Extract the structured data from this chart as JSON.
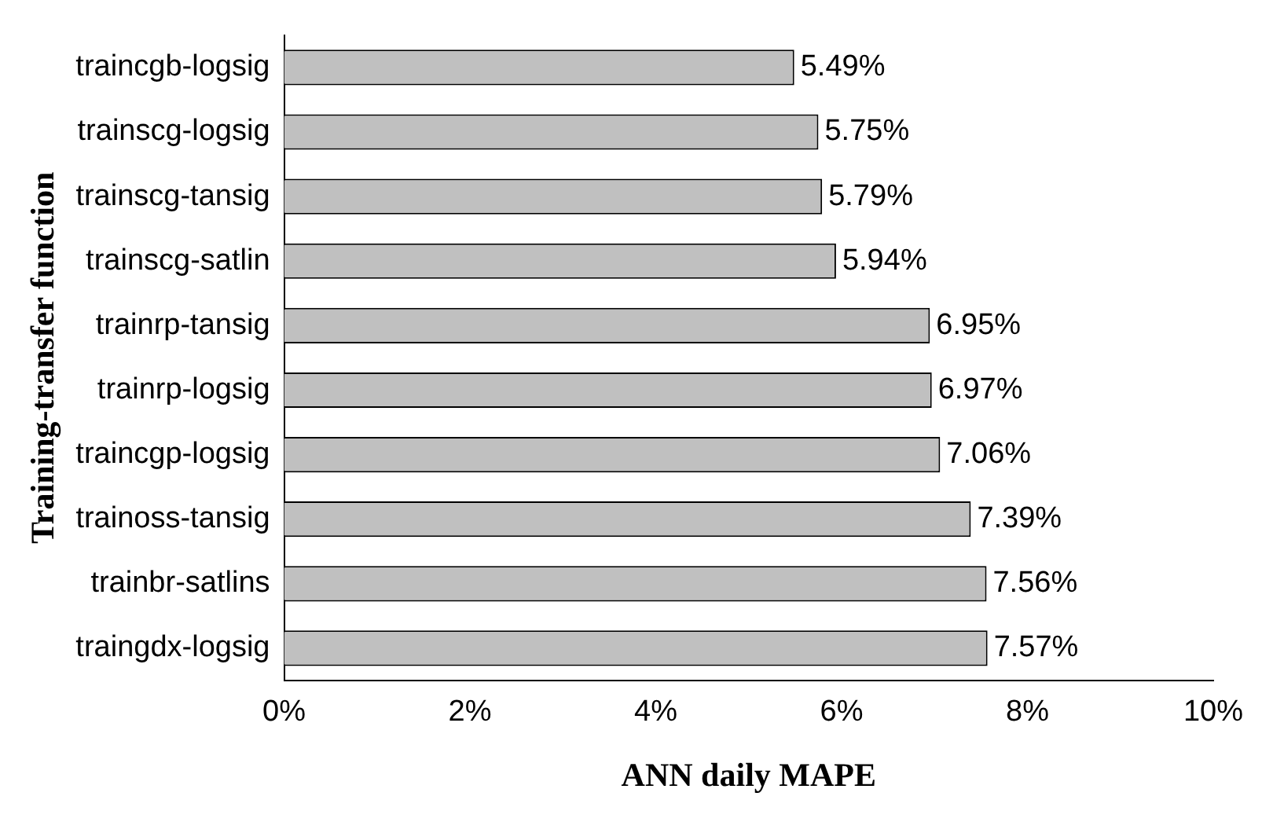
{
  "chart_data": {
    "type": "bar",
    "orientation": "horizontal",
    "xlabel": "ANN daily MAPE",
    "ylabel": "Training-transfer function",
    "categories": [
      "traincgb-logsig",
      "trainscg-logsig",
      "trainscg-tansig",
      "trainscg-satlin",
      "trainrp-tansig",
      "trainrp-logsig",
      "traincgp-logsig",
      "trainoss-tansig",
      "trainbr-satlins",
      "traingdx-logsig"
    ],
    "values": [
      5.49,
      5.75,
      5.79,
      5.94,
      6.95,
      6.97,
      7.06,
      7.39,
      7.56,
      7.57
    ],
    "value_labels": [
      "5.49%",
      "5.75%",
      "5.79%",
      "5.94%",
      "6.95%",
      "6.97%",
      "7.06%",
      "7.39%",
      "7.56%",
      "7.57%"
    ],
    "color": "#c0c0c0",
    "xlim": [
      0,
      10
    ],
    "xticks": [
      {
        "value": 0,
        "label": "0%"
      },
      {
        "value": 2,
        "label": "2%"
      },
      {
        "value": 4,
        "label": "4%"
      },
      {
        "value": 6,
        "label": "6%"
      },
      {
        "value": 8,
        "label": "8%"
      },
      {
        "value": 10,
        "label": "10%"
      }
    ],
    "grid": false,
    "legend": false
  }
}
